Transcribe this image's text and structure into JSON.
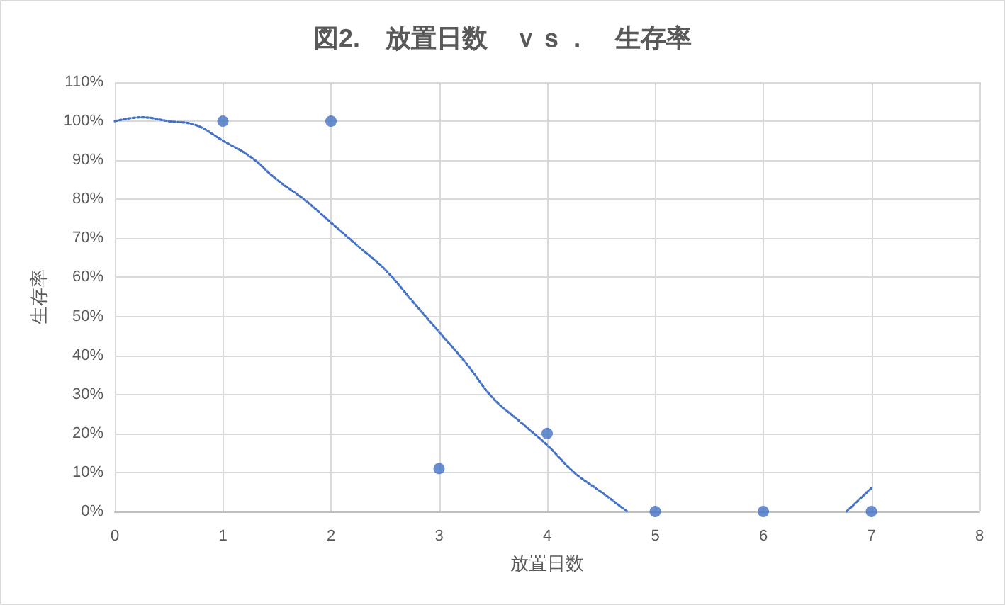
{
  "chart_data": {
    "type": "scatter",
    "title": "図2.　放置日数　ｖｓ．　生存率",
    "xlabel": "放置日数",
    "ylabel": "生存率",
    "xlim": [
      0,
      8
    ],
    "xticks": [
      0,
      1,
      2,
      3,
      4,
      5,
      6,
      7,
      8
    ],
    "ylim": [
      0,
      110
    ],
    "yticks": [
      {
        "value": 0,
        "label": "0%"
      },
      {
        "value": 10,
        "label": "10%"
      },
      {
        "value": 20,
        "label": "20%"
      },
      {
        "value": 30,
        "label": "30%"
      },
      {
        "value": 40,
        "label": "40%"
      },
      {
        "value": 50,
        "label": "50%"
      },
      {
        "value": 60,
        "label": "60%"
      },
      {
        "value": 70,
        "label": "70%"
      },
      {
        "value": 80,
        "label": "80%"
      },
      {
        "value": 90,
        "label": "90%"
      },
      {
        "value": 100,
        "label": "100%"
      },
      {
        "value": 110,
        "label": "110%"
      }
    ],
    "grid": true,
    "marker": "circle",
    "line_style": "dotted",
    "series": [
      {
        "color": "#4472c4",
        "x": [
          1,
          2,
          3,
          4,
          5,
          6,
          7
        ],
        "values": [
          100,
          100,
          11,
          20,
          0,
          0,
          0
        ]
      },
      {
        "type": "line",
        "color": "#4472c4",
        "marker": "none",
        "x": [
          0,
          0.25,
          0.5,
          0.75,
          1,
          1.25,
          1.5,
          1.75,
          2,
          2.25,
          2.5,
          2.75,
          3,
          3.25,
          3.5,
          3.75,
          4,
          4.25,
          4.5,
          4.74,
          5.8,
          6.77,
          7
        ],
        "values": [
          100,
          101,
          100,
          99,
          95,
          91,
          85,
          80,
          74,
          68,
          62,
          54,
          46,
          38,
          29,
          23,
          17,
          10,
          5,
          0,
          null,
          0,
          6
        ]
      }
    ]
  }
}
